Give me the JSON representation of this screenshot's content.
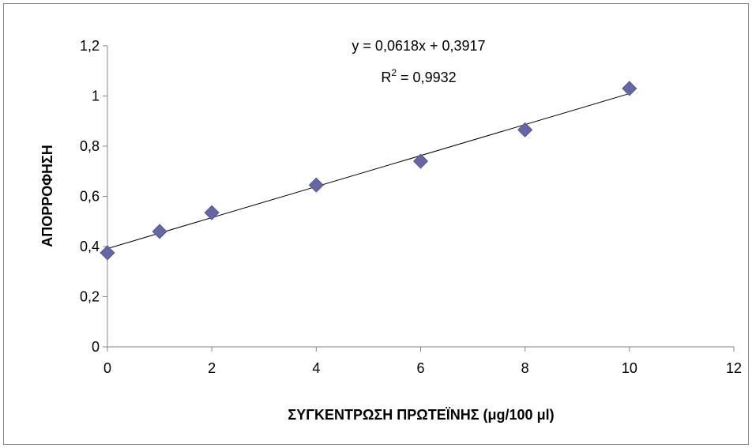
{
  "chart_data": {
    "type": "scatter",
    "xlabel": "ΣΥΓΚΕΝΤΡΩΣΗ ΠΡΩΤΕΪΝΗΣ (μg/100 μl)",
    "ylabel": "ΑΠΟΡΡΟΦΗΣΗ",
    "xlim": [
      0,
      12
    ],
    "ylim": [
      0,
      1.2
    ],
    "x_ticks": [
      0,
      2,
      4,
      6,
      8,
      10,
      12
    ],
    "x_tick_labels": [
      "0",
      "2",
      "4",
      "6",
      "8",
      "10",
      "12"
    ],
    "y_ticks": [
      0,
      0.2,
      0.4,
      0.6,
      0.8,
      1.0,
      1.2
    ],
    "y_tick_labels": [
      "0",
      "0,2",
      "0,4",
      "0,6",
      "0,8",
      "1",
      "1,2"
    ],
    "grid": false,
    "legend": "none",
    "series": [
      {
        "x": [
          0,
          1,
          2,
          4,
          6,
          8,
          10
        ],
        "y": [
          0.375,
          0.46,
          0.535,
          0.645,
          0.74,
          0.865,
          1.03
        ],
        "marker": "diamond",
        "color": "#6566A5"
      }
    ],
    "trendline": {
      "type": "linear",
      "slope": 0.0618,
      "intercept": 0.3917,
      "x_range": [
        0,
        10
      ],
      "color": "#000000",
      "equation_text": "y = 0,0618x + 0,3917",
      "r2_prefix": "R",
      "r2_sup": "2",
      "r2_suffix": " = 0,9932"
    }
  }
}
